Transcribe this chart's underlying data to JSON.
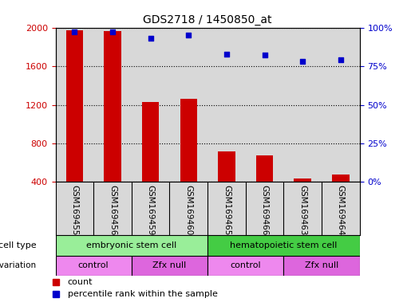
{
  "title": "GDS2718 / 1450850_at",
  "samples": [
    "GSM169455",
    "GSM169456",
    "GSM169459",
    "GSM169460",
    "GSM169465",
    "GSM169466",
    "GSM169463",
    "GSM169464"
  ],
  "counts": [
    1970,
    1965,
    1230,
    1260,
    720,
    680,
    440,
    480
  ],
  "percentile_ranks": [
    97,
    97,
    93,
    95,
    83,
    82,
    78,
    79
  ],
  "ylim_left": [
    400,
    2000
  ],
  "ylim_right": [
    0,
    100
  ],
  "yticks_left": [
    400,
    800,
    1200,
    1600,
    2000
  ],
  "yticks_right": [
    0,
    25,
    50,
    75,
    100
  ],
  "bar_color": "#cc0000",
  "dot_color": "#0000cc",
  "cell_type_groups": [
    {
      "label": "embryonic stem cell",
      "start": 0,
      "end": 3,
      "color": "#99ee99"
    },
    {
      "label": "hematopoietic stem cell",
      "start": 4,
      "end": 7,
      "color": "#44cc44"
    }
  ],
  "genotype_groups": [
    {
      "label": "control",
      "start": 0,
      "end": 1,
      "color": "#ee88ee"
    },
    {
      "label": "Zfx null",
      "start": 2,
      "end": 3,
      "color": "#dd66dd"
    },
    {
      "label": "control",
      "start": 4,
      "end": 5,
      "color": "#ee88ee"
    },
    {
      "label": "Zfx null",
      "start": 6,
      "end": 7,
      "color": "#dd66dd"
    }
  ],
  "legend_count_color": "#cc0000",
  "legend_dot_color": "#0000cc",
  "background_color": "#ffffff",
  "plot_bg_color": "#d8d8d8",
  "left_tick_color": "#cc0000",
  "right_tick_color": "#0000cc",
  "xlabel_bg_color": "#d8d8d8"
}
